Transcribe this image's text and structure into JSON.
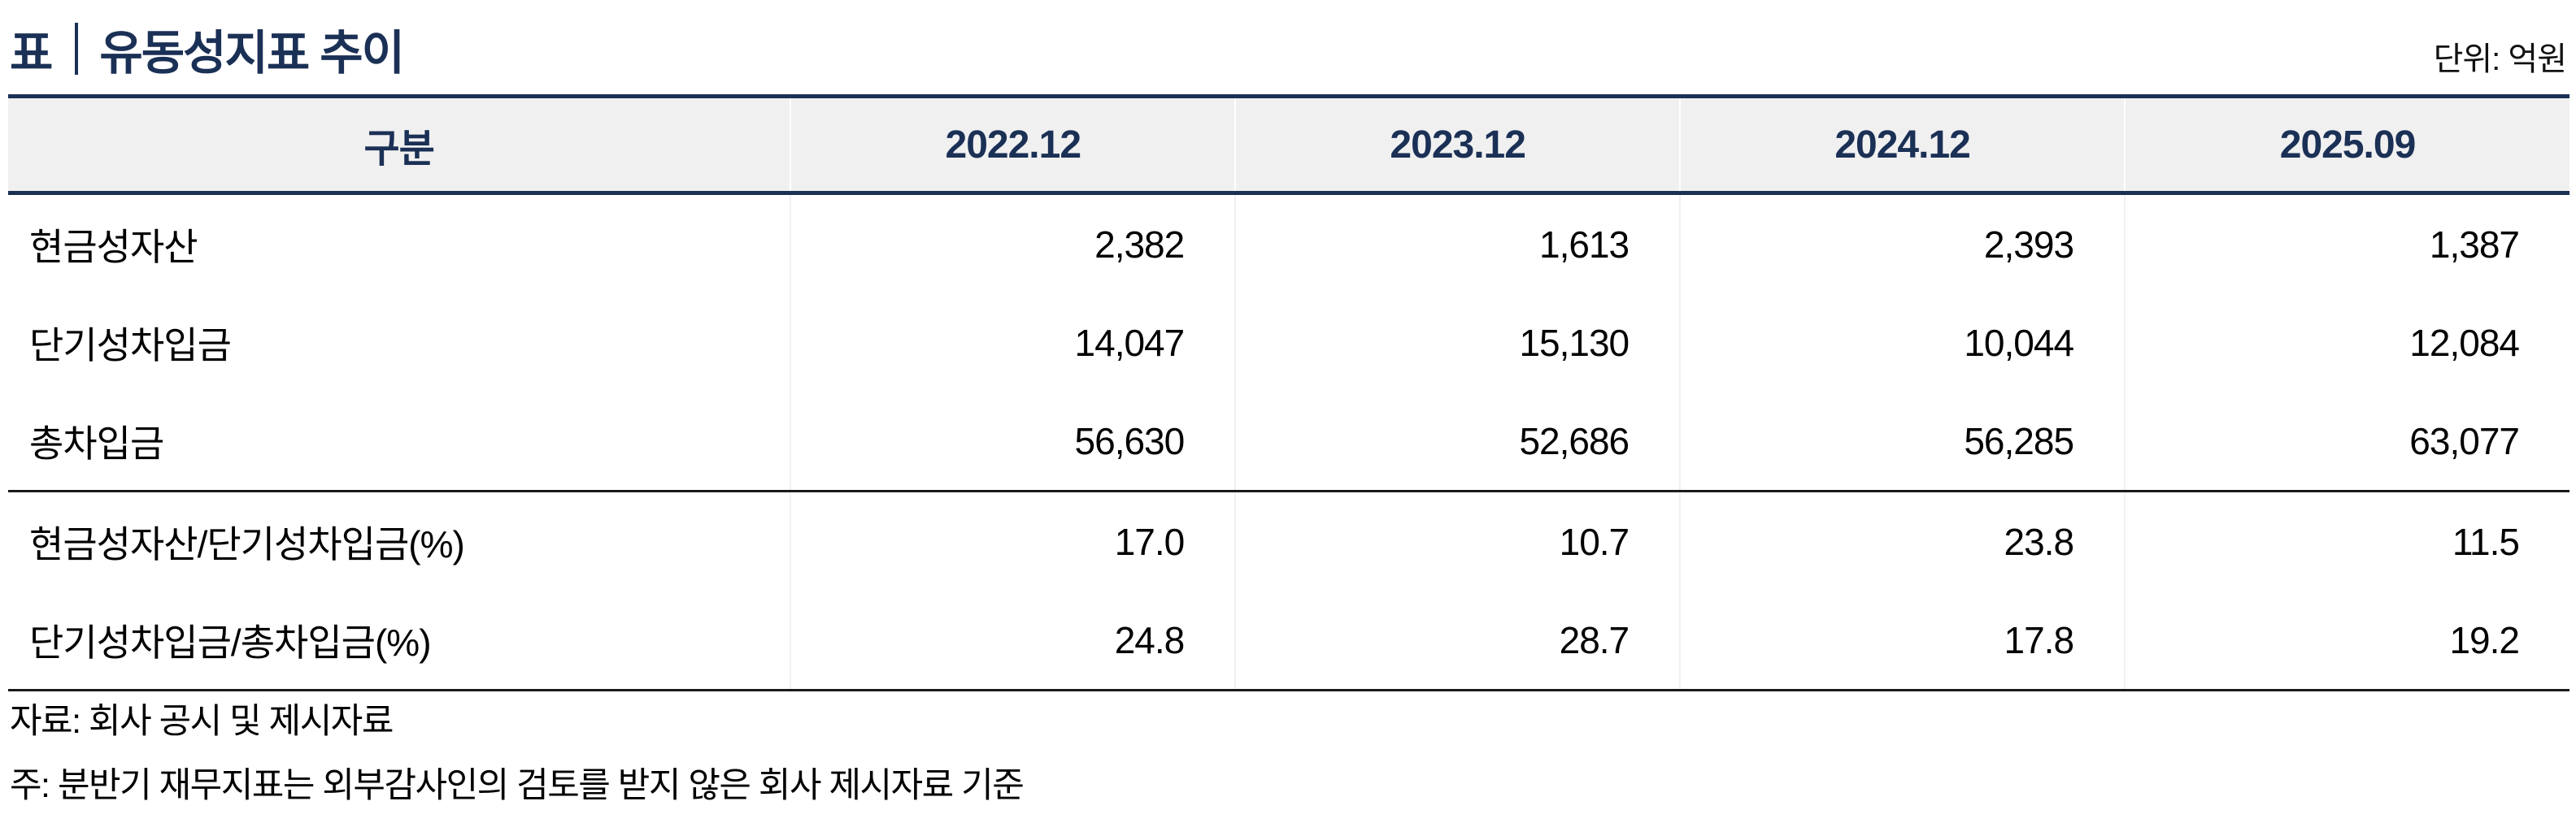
{
  "page": {
    "title_prefix": "표",
    "title": "유동성지표 추이",
    "unit_label": "단위: 억원"
  },
  "table": {
    "columns": [
      "구분",
      "2022.12",
      "2023.12",
      "2024.12",
      "2025.09"
    ],
    "rows": [
      {
        "label": "현금성자산",
        "values": [
          "2,382",
          "1,613",
          "2,393",
          "1,387"
        ]
      },
      {
        "label": "단기성차입금",
        "values": [
          "14,047",
          "15,130",
          "10,044",
          "12,084"
        ]
      },
      {
        "label": "총차입금",
        "values": [
          "56,630",
          "52,686",
          "56,285",
          "63,077"
        ]
      },
      {
        "label": "현금성자산/단기성차입금(%)",
        "values": [
          "17.0",
          "10.7",
          "23.8",
          "11.5"
        ]
      },
      {
        "label": "단기성차입금/총차입금(%)",
        "values": [
          "24.8",
          "28.7",
          "17.8",
          "19.2"
        ]
      }
    ]
  },
  "footnotes": {
    "source": "자료: 회사 공시 및 제시자료",
    "note": "주: 분반기 재무지표는 외부감사인의 검토를 받지 않은 회사 제시자료 기준"
  },
  "colors": {
    "navy": "#1b3055",
    "header_bg": "#f0f0f1",
    "rule_black": "#1a1a1a"
  }
}
